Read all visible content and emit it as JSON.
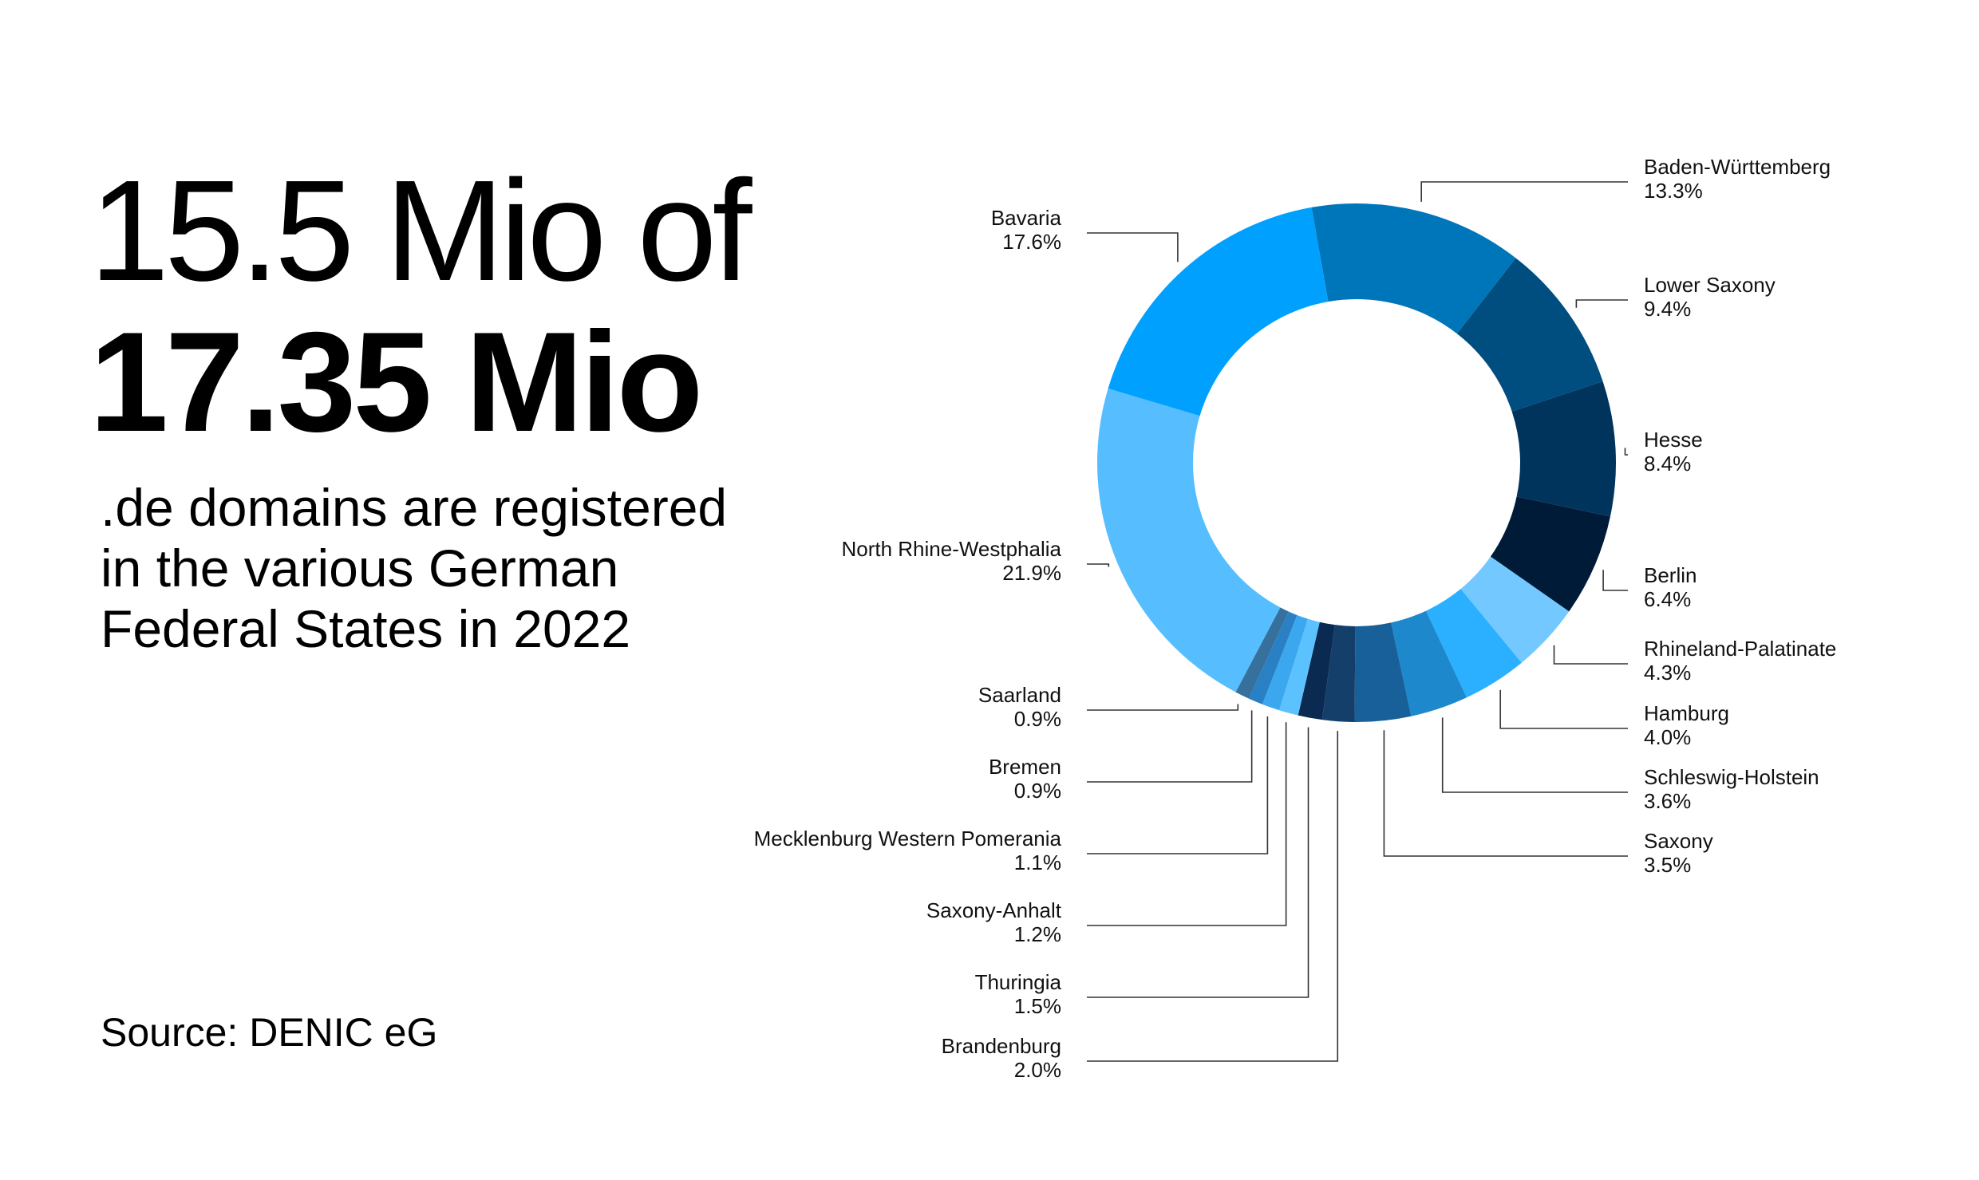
{
  "headline": {
    "light": "15.5 Mio of",
    "bold": "17.35 Mio",
    "subtitle_lines": [
      ".de domains are registered",
      "in the various German",
      "Federal States in 2022"
    ]
  },
  "source": "Source: DENIC eG",
  "chart_data": {
    "type": "pie",
    "variant": "donut",
    "unit": "%",
    "categories": [
      "Baden-Württemberg",
      "Lower Saxony",
      "Hesse",
      "Berlin",
      "Rhineland-Palatinate",
      "Hamburg",
      "Schleswig-Holstein",
      "Saxony",
      "Brandenburg",
      "Thuringia",
      "Saxony-Anhalt",
      "Mecklenburg Western Pomerania",
      "Bremen",
      "Saarland",
      "North Rhine-Westphalia",
      "Bavaria"
    ],
    "values": [
      13.3,
      9.4,
      8.4,
      6.4,
      4.3,
      4.0,
      3.6,
      3.5,
      2.0,
      1.5,
      1.2,
      1.1,
      0.9,
      0.9,
      21.9,
      17.6
    ],
    "value_labels": [
      "13.3%",
      "9.4%",
      "8.4%",
      "6.4%",
      "4.3%",
      "4.0%",
      "3.6%",
      "3.5%",
      "2.0%",
      "1.5%",
      "1.2%",
      "1.1%",
      "0.9%",
      "0.9%",
      "21.9%",
      "17.6%"
    ],
    "colors": [
      "#0076BA",
      "#004D80",
      "#00345C",
      "#001B38",
      "#73C8FF",
      "#2AB0FF",
      "#1E88CC",
      "#17609A",
      "#133F6A",
      "#0A2A52",
      "#5CC2FF",
      "#3AA7EE",
      "#2980C4",
      "#36719E",
      "#56BEFF",
      "#00A0FF"
    ]
  }
}
